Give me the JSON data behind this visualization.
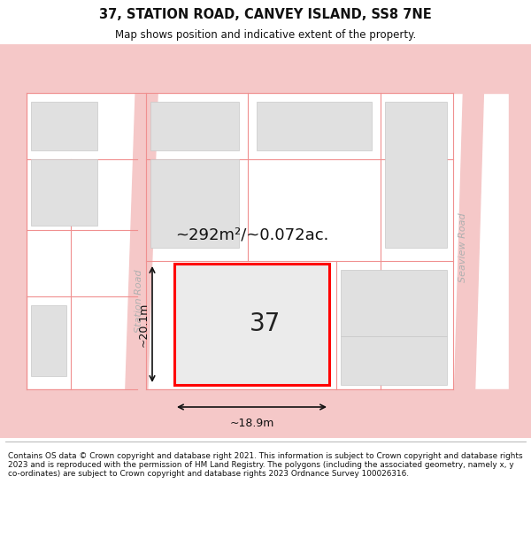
{
  "title": "37, STATION ROAD, CANVEY ISLAND, SS8 7NE",
  "subtitle": "Map shows position and indicative extent of the property.",
  "footnote": "Contains OS data © Crown copyright and database right 2021. This information is subject to Crown copyright and database rights 2023 and is reproduced with the permission of HM Land Registry. The polygons (including the associated geometry, namely x, y co-ordinates) are subject to Crown copyright and database rights 2023 Ordnance Survey 100026316.",
  "map_bg": "#f0f0f0",
  "road_color": "#f5c8c8",
  "building_fill": "#e0e0e0",
  "building_edge": "#c8c8c8",
  "plot_fill": "#e8e8e8",
  "plot_edge": "#ff0000",
  "plot_lw": 2.0,
  "label_37": "37",
  "area_label": "~292m²/~0.072ac.",
  "dim_width": "~18.9m",
  "dim_height": "~20.1m",
  "road_label_left": "Station Road",
  "road_label_right": "Seaview Road",
  "cadastral_color": "#f09090"
}
